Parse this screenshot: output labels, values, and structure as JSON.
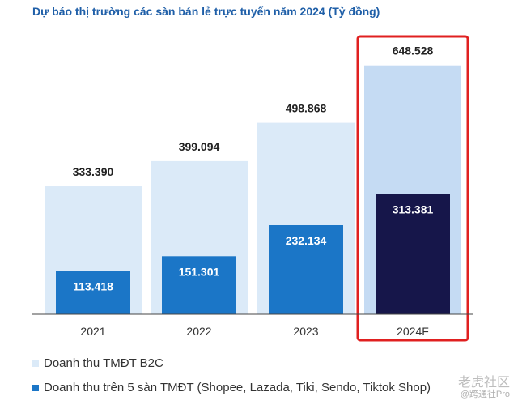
{
  "title": "Dự báo thị trường các sàn bán lẻ trực tuyến năm 2024 (Tỷ đồng)",
  "chart_data": {
    "type": "bar",
    "categories": [
      "2021",
      "2022",
      "2023",
      "2024F"
    ],
    "series": [
      {
        "name": "Doanh thu TMĐT B2C",
        "values": [
          333.39,
          399.094,
          498.868,
          648.528
        ],
        "labels": [
          "333.390",
          "399.094",
          "498.868",
          "648.528"
        ]
      },
      {
        "name": "Doanh thu trên 5 sàn TMĐT (Shopee, Lazada, Tiki, Sendo, Tiktok Shop)",
        "values": [
          113.418,
          151.301,
          232.134,
          313.381
        ],
        "labels": [
          "113.418",
          "151.301",
          "232.134",
          "313.381"
        ]
      }
    ],
    "ylim": [
      0,
      700
    ],
    "highlight_category": "2024F",
    "colors": {
      "b2c": "#dbeaf8",
      "b2c_highlight": "#c5dbf3",
      "platforms": "#1b76c7",
      "platforms_highlight": "#16164a",
      "highlight_border": "#e02020"
    }
  },
  "watermark": {
    "line1": "老虎社区",
    "line2": "@跨通社Pro"
  }
}
